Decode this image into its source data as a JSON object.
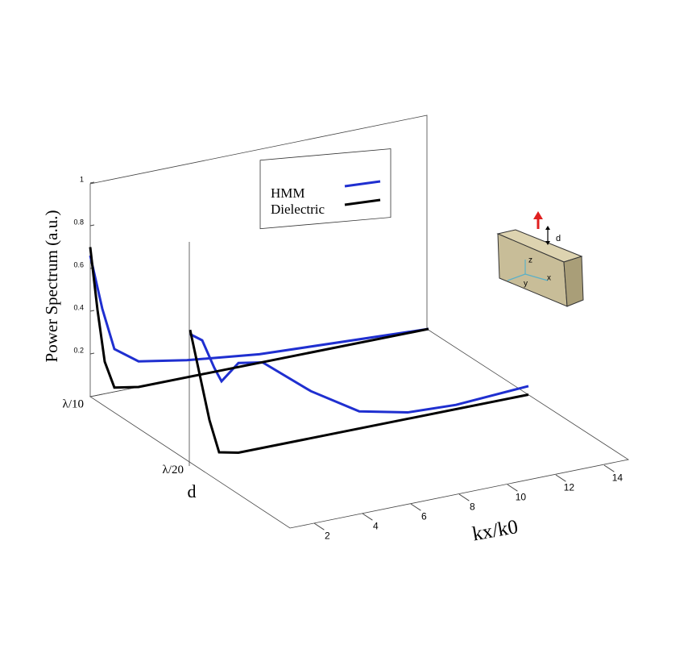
{
  "chart_data": {
    "type": "line3d",
    "zlabel": "Power Spectrum (a.u.)",
    "xlabel": "kx/k0",
    "dlabel": "d",
    "depths": [
      "λ/10",
      "λ/20"
    ],
    "xlim": [
      1,
      15
    ],
    "xticks": [
      2,
      4,
      6,
      8,
      10,
      12,
      14
    ],
    "zlim": [
      0,
      1
    ],
    "zticks": [
      0.2,
      0.4,
      0.6,
      0.8,
      1
    ],
    "series": [
      {
        "name": "HMM",
        "color": "#1f2fd0",
        "curves": [
          {
            "x": [
              1,
              1.5,
              2,
              3,
              5,
              8,
              15
            ],
            "values": [
              0.66,
              0.4,
              0.2,
              0.12,
              0.08,
              0.04,
              0
            ]
          },
          {
            "x": [
              1,
              1.5,
              2,
              2.3,
              3,
              4,
              6,
              8,
              10,
              12,
              15
            ],
            "values": [
              0.6,
              0.56,
              0.42,
              0.35,
              0.42,
              0.4,
              0.22,
              0.08,
              0.03,
              0.02,
              0.04
            ]
          }
        ]
      },
      {
        "name": "Dielectric",
        "color": "#000000",
        "curves": [
          {
            "x": [
              1,
              1.3,
              1.6,
              2,
              3,
              15
            ],
            "values": [
              0.7,
              0.4,
              0.15,
              0.02,
              0,
              0
            ]
          },
          {
            "x": [
              1,
              1.4,
              1.8,
              2.2,
              3,
              15
            ],
            "values": [
              0.62,
              0.4,
              0.18,
              0.02,
              0,
              0
            ]
          }
        ]
      }
    ],
    "inset_labels": [
      "d",
      "z",
      "y",
      "x"
    ]
  }
}
